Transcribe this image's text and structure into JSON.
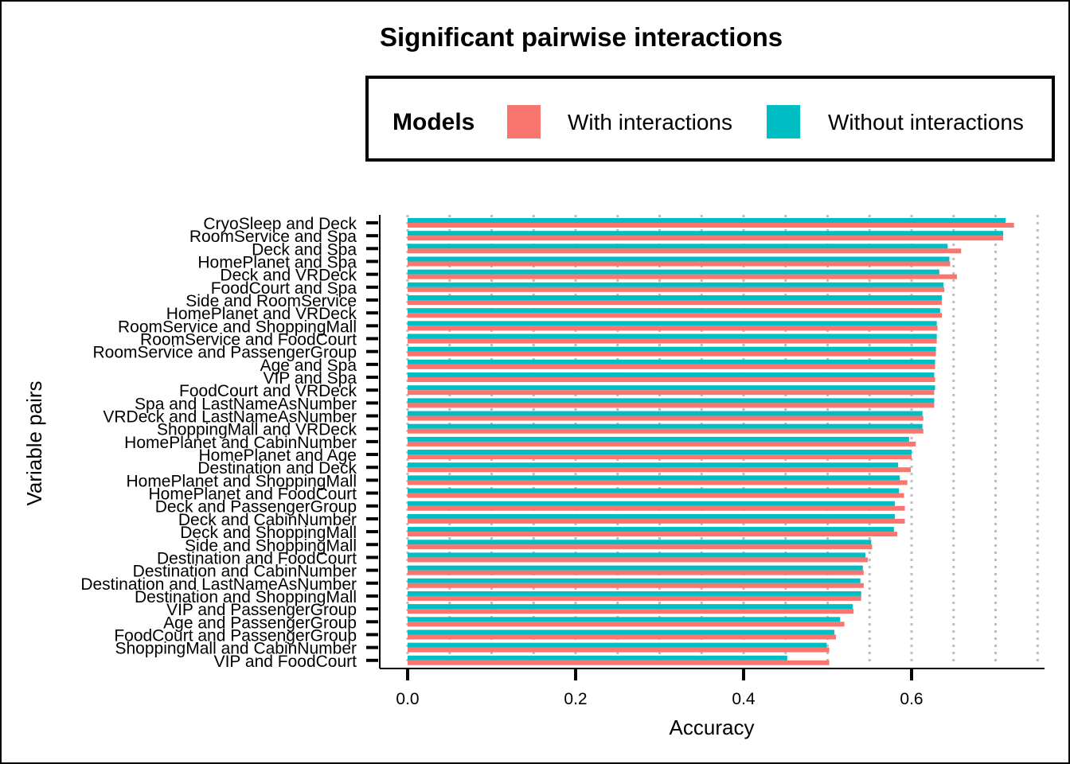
{
  "chart_data": {
    "type": "bar",
    "orientation": "horizontal",
    "title": "Significant pairwise interactions",
    "xlabel": "Accuracy",
    "ylabel": "Variable pairs",
    "xlim": [
      -0.035,
      0.755
    ],
    "xticks": [
      0.0,
      0.2,
      0.4,
      0.6
    ],
    "grid": "vertical dotted",
    "legend": {
      "title": "Models",
      "placement": "top",
      "entries": [
        {
          "name": "With interactions",
          "color": "#F8766D"
        },
        {
          "name": "Without interactions",
          "color": "#00BFC4"
        }
      ]
    },
    "categories": [
      "CryoSleep and Deck",
      "RoomService and Spa",
      "Deck and Spa",
      "HomePlanet and Spa",
      "Deck and VRDeck",
      "FoodCourt and Spa",
      "Side and RoomService",
      "HomePlanet and VRDeck",
      "RoomService and ShoppingMall",
      "RoomService and FoodCourt",
      "RoomService and PassengerGroup",
      "Age and Spa",
      "VIP and Spa",
      "FoodCourt and VRDeck",
      "Spa and LastNameAsNumber",
      "VRDeck and LastNameAsNumber",
      "ShoppingMall and VRDeck",
      "HomePlanet and CabinNumber",
      "HomePlanet and Age",
      "Destination and Deck",
      "HomePlanet and ShoppingMall",
      "HomePlanet and FoodCourt",
      "Deck and PassengerGroup",
      "Deck and CabinNumber",
      "Deck and ShoppingMall",
      "Side and ShoppingMall",
      "Destination and FoodCourt",
      "Destination and CabinNumber",
      "Destination and LastNameAsNumber",
      "Destination and ShoppingMall",
      "VIP and PassengerGroup",
      "Age and PassengerGroup",
      "FoodCourt and PassengerGroup",
      "ShoppingMall and CabinNumber",
      "VIP and FoodCourt"
    ],
    "series": [
      {
        "name": "Without interactions",
        "color": "#00BFC4",
        "values": [
          0.712,
          0.709,
          0.643,
          0.645,
          0.633,
          0.638,
          0.636,
          0.634,
          0.63,
          0.63,
          0.629,
          0.628,
          0.627,
          0.628,
          0.627,
          0.613,
          0.613,
          0.597,
          0.6,
          0.584,
          0.586,
          0.585,
          0.58,
          0.58,
          0.579,
          0.552,
          0.545,
          0.542,
          0.539,
          0.54,
          0.53,
          0.515,
          0.508,
          0.499,
          0.452
        ]
      },
      {
        "name": "With interactions",
        "color": "#F8766D",
        "values": [
          0.722,
          0.709,
          0.659,
          0.646,
          0.654,
          0.639,
          0.636,
          0.636,
          0.631,
          0.63,
          0.629,
          0.628,
          0.628,
          0.627,
          0.627,
          0.614,
          0.614,
          0.605,
          0.6,
          0.599,
          0.595,
          0.591,
          0.592,
          0.592,
          0.583,
          0.553,
          0.548,
          0.543,
          0.543,
          0.54,
          0.531,
          0.52,
          0.51,
          0.502,
          0.502
        ]
      }
    ]
  }
}
